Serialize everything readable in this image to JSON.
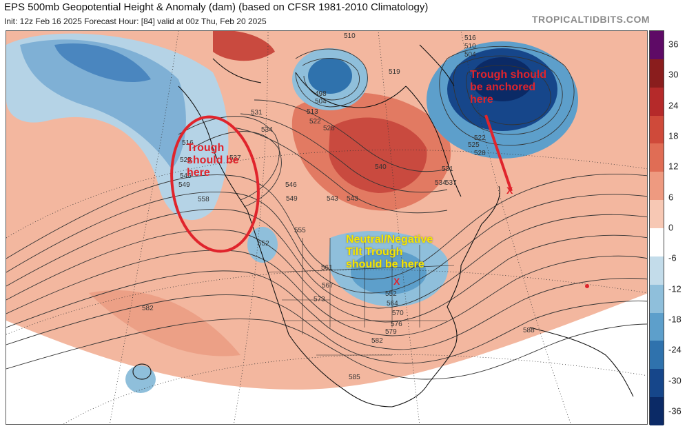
{
  "header": {
    "title": "EPS 500mb Geopotential Height & Anomaly (dam) (based on CFSR 1981-2010 Climatology)",
    "subtitle": "Init: 12z Feb 16 2025   Forecast Hour: [84]   valid at 00z Thu, Feb 20 2025",
    "brand": "TROPICALTIDBITS.COM"
  },
  "colorbar": {
    "ticks": [
      "36",
      "30",
      "24",
      "18",
      "12",
      "6",
      "0",
      "-6",
      "-12",
      "-18",
      "-24",
      "-30",
      "-36"
    ],
    "colors": [
      "#5e0a66",
      "#8a1d1d",
      "#b52a2a",
      "#cf4a3a",
      "#e06d55",
      "#ee9a80",
      "#f7c8b4",
      "#ffffff",
      "#c3dcea",
      "#8fbfdb",
      "#5d9fcb",
      "#2f72ad",
      "#16468a",
      "#0b2a66"
    ]
  },
  "annotations": {
    "west_trough": "Trough\nshould be\nhere",
    "atlantic_trough": "Trough should\nbe anchored\nhere",
    "east_trough": "Neutral/Negative\nTilt Trough\nshould be here",
    "east_marker": "X",
    "atlantic_marker": "X"
  },
  "contour_labels": [
    "510",
    "519",
    "498",
    "504",
    "513",
    "522",
    "528",
    "531",
    "534",
    "537",
    "540",
    "543",
    "546",
    "549",
    "555",
    "552",
    "516",
    "525",
    "558",
    "561",
    "567",
    "573",
    "570",
    "576",
    "579",
    "582",
    "585",
    "588",
    "564",
    "516",
    "510",
    "504",
    "522",
    "525",
    "528",
    "531",
    "534",
    "537",
    "543",
    "546",
    "549",
    "552",
    "582"
  ]
}
